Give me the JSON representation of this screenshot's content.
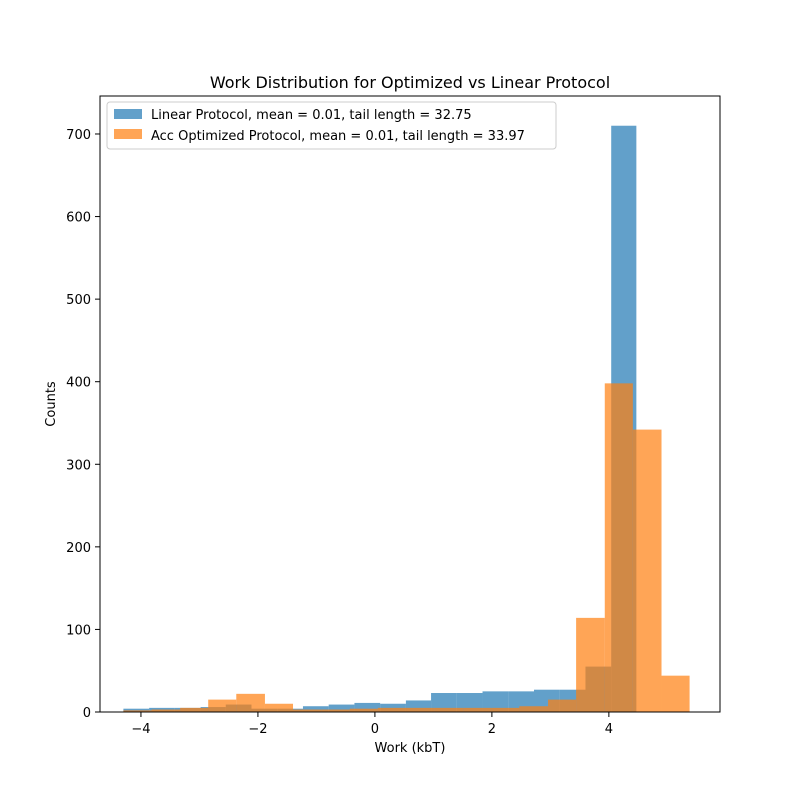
{
  "chart_data": {
    "type": "bar",
    "title": "Work Distribution for Optimized vs Linear Protocol",
    "xlabel": "Work (kbT)",
    "ylabel": "Counts",
    "xlim": [
      -4.7,
      5.9
    ],
    "ylim": [
      0,
      746
    ],
    "xticks": [
      -4,
      -2,
      0,
      2,
      4
    ],
    "xtick_labels": [
      "−4",
      "−2",
      "0",
      "2",
      "4"
    ],
    "yticks": [
      0,
      100,
      200,
      300,
      400,
      500,
      600,
      700
    ],
    "ytick_labels": [
      "0",
      "100",
      "200",
      "300",
      "400",
      "500",
      "600",
      "700"
    ],
    "grid": false,
    "legend_position": "top-left",
    "series": [
      {
        "name": "Linear Protocol, mean = 0.01, tail length = 32.75",
        "color": "#1f77b4",
        "opacity": 0.7,
        "bin_edges": [
          -4.3,
          -3.86,
          -3.42,
          -2.98,
          -2.55,
          -2.11,
          -1.67,
          -1.23,
          -0.79,
          -0.35,
          0.09,
          0.53,
          0.96,
          1.4,
          1.84,
          2.28,
          2.72,
          3.16,
          3.6,
          4.04,
          4.47
        ],
        "counts": [
          4,
          5,
          5,
          6,
          9,
          4,
          4,
          7,
          9,
          11,
          10,
          14,
          23,
          23,
          25,
          25,
          27,
          27,
          55,
          710
        ]
      },
      {
        "name": "Acc Optimized Protocol, mean = 0.01, tail length = 33.97",
        "color": "#ff7f0e",
        "opacity": 0.7,
        "bin_edges": [
          -4.3,
          -3.82,
          -3.33,
          -2.85,
          -2.37,
          -1.88,
          -1.4,
          -0.91,
          -0.43,
          0.05,
          0.54,
          1.02,
          1.51,
          1.99,
          2.47,
          2.96,
          3.44,
          3.93,
          4.41,
          4.9,
          5.38
        ],
        "counts": [
          2,
          3,
          5,
          15,
          22,
          10,
          3,
          3,
          4,
          5,
          5,
          5,
          5,
          5,
          7,
          15,
          114,
          398,
          342,
          44
        ]
      }
    ]
  }
}
